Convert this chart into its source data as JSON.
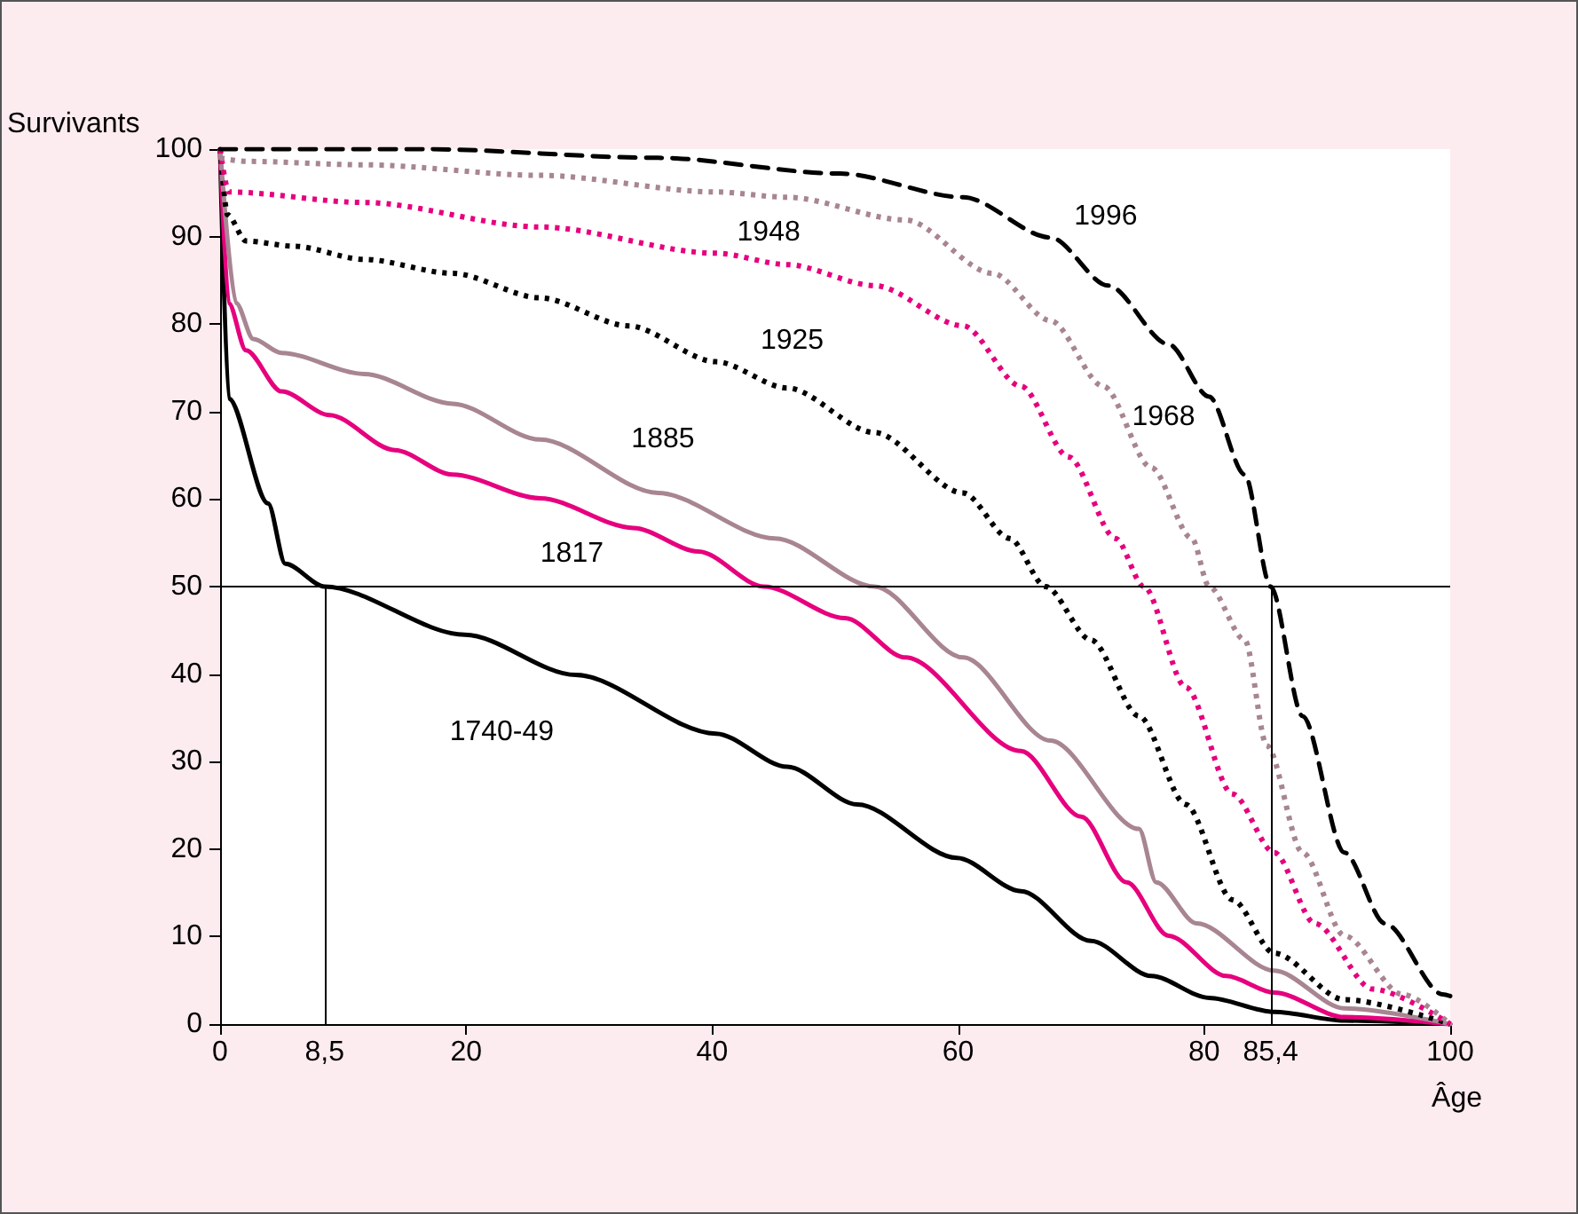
{
  "chart_data": {
    "type": "line",
    "xlabel": "Âge",
    "ylabel": "Survivants",
    "xlim": [
      0,
      100
    ],
    "ylim": [
      0,
      100
    ],
    "xticks": [
      0,
      {
        "value": 8.5,
        "label": "8,5"
      },
      20,
      40,
      60,
      80,
      {
        "value": 85.4,
        "label": "85,4"
      },
      100
    ],
    "yticks": [
      0,
      10,
      20,
      30,
      40,
      50,
      60,
      70,
      80,
      90,
      100
    ],
    "grid": false,
    "legend": false,
    "marker": "none",
    "ref_lines": [
      {
        "axis": "y",
        "value": 50,
        "color": "#000000"
      },
      {
        "axis": "x",
        "value": 8.5,
        "color": "#000000"
      },
      {
        "axis": "x",
        "value": 85.4,
        "color": "#000000"
      }
    ],
    "series": [
      {
        "name": "1740-49",
        "color": "#000000",
        "line_style": "solid",
        "x": [
          0,
          0.7,
          3.9,
          5.3,
          8.5,
          19.9,
          28.9,
          40.3,
          46.1,
          51.8,
          59.9,
          65.1,
          70.8,
          75.7,
          80.4,
          85.7,
          91.4,
          100
        ],
        "values": [
          100,
          71.5,
          59.5,
          52.6,
          50,
          44.5,
          39.9,
          33.2,
          29.4,
          25.1,
          19,
          15.2,
          9.5,
          5.5,
          3,
          1.4,
          0.4,
          0
        ]
      },
      {
        "name": "1817",
        "color": "#e6007e",
        "line_style": "solid",
        "x": [
          0,
          0.7,
          2.1,
          5,
          8.9,
          14.2,
          18.9,
          26,
          33.6,
          38.9,
          44.2,
          50.8,
          55.7,
          65.1,
          70,
          73.7,
          77.1,
          81.8,
          85.7,
          91.4,
          100
        ],
        "values": [
          100,
          82.4,
          77,
          72.3,
          69.6,
          65.6,
          62.8,
          60.1,
          56.7,
          54,
          50,
          46.4,
          41.9,
          31.2,
          23.7,
          16.2,
          10.1,
          5.5,
          3.6,
          0.8,
          0
        ]
      },
      {
        "name": "1885",
        "color": "#a88592",
        "line_style": "solid",
        "x": [
          0,
          1.3,
          2.7,
          5,
          11.7,
          18.9,
          26,
          35.6,
          45.1,
          53.2,
          60.4,
          67.5,
          74.7,
          76.1,
          79.4,
          85.7,
          91.4,
          100
        ],
        "values": [
          100,
          82.4,
          78.3,
          76.7,
          74.3,
          70.9,
          66.8,
          60.7,
          55.5,
          50,
          41.9,
          32.4,
          22.3,
          16.2,
          11.5,
          6.1,
          1.8,
          0
        ]
      },
      {
        "name": "1925",
        "color": "#000000",
        "line_style": "dotted",
        "x": [
          0,
          0.6,
          2.1,
          6,
          11.7,
          18.9,
          26,
          33.2,
          40.3,
          46.1,
          53.2,
          60.4,
          64.2,
          67.1,
          70.8,
          74.7,
          78.5,
          82.3,
          85.7,
          91.4,
          100
        ],
        "values": [
          100,
          92.5,
          89.5,
          88.9,
          87.4,
          85.8,
          83,
          79.8,
          75.7,
          72.7,
          67.6,
          60.7,
          55.5,
          50,
          43.9,
          35.2,
          25.1,
          14.2,
          8.1,
          2.8,
          0
        ]
      },
      {
        "name": "1948",
        "color": "#e6007e",
        "line_style": "dotted",
        "x": [
          0,
          0.7,
          11.7,
          26,
          40.3,
          46.1,
          53.2,
          60.4,
          65.1,
          69,
          72.8,
          75.1,
          78.5,
          82.3,
          85.7,
          89,
          93.7,
          100
        ],
        "values": [
          100,
          95.1,
          93.9,
          91.1,
          88.1,
          86.8,
          84.4,
          79.8,
          72.9,
          64.8,
          55.5,
          50,
          38.5,
          26.3,
          19.6,
          11.5,
          4,
          0
        ]
      },
      {
        "name": "1968",
        "color": "#a88592",
        "line_style": "dotted",
        "x": [
          0,
          2.1,
          11.7,
          26,
          40.3,
          46.1,
          55.7,
          62.8,
          67.5,
          71.8,
          75.7,
          79,
          80.4,
          83.3,
          85.1,
          88,
          91.4,
          96.1,
          100
        ],
        "values": [
          99,
          98.6,
          98.2,
          97,
          95.1,
          94.5,
          91.9,
          85.8,
          80.4,
          72.9,
          63.6,
          55.5,
          50,
          43.9,
          31.8,
          19.6,
          10.1,
          3.4,
          0
        ]
      },
      {
        "name": "1996",
        "color": "#000000",
        "line_style": "dashed",
        "x": [
          0,
          16.5,
          35.6,
          50.4,
          60.4,
          67.5,
          72.2,
          77.1,
          80.4,
          83.3,
          85.4,
          88,
          91.4,
          94.7,
          99.4,
          100
        ],
        "values": [
          100,
          100,
          99,
          97.2,
          94.5,
          89.9,
          84.4,
          77.7,
          71.7,
          62.8,
          50,
          35.2,
          19.6,
          11.5,
          3.4,
          3.2
        ]
      }
    ]
  }
}
